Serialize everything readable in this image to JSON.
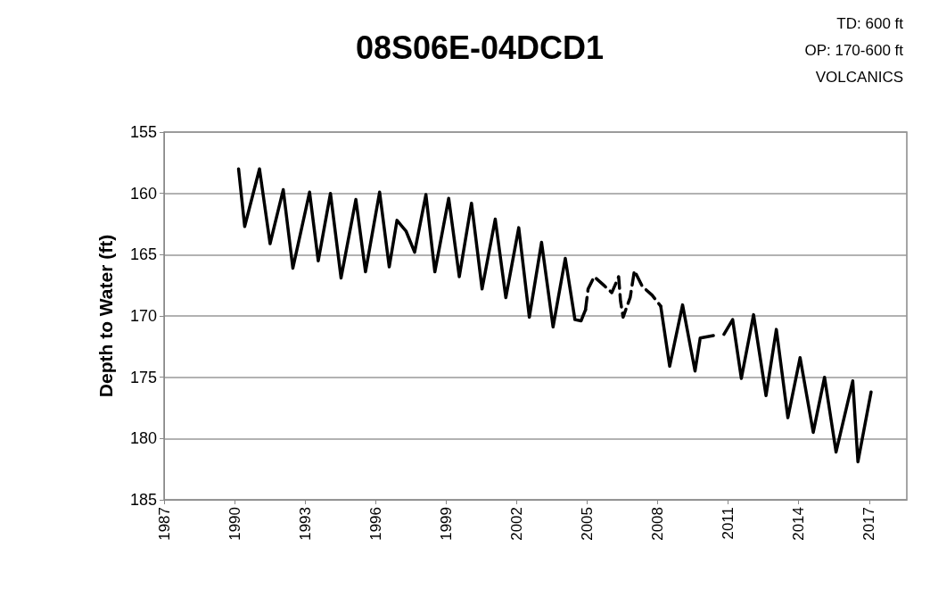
{
  "chart_data": {
    "type": "line",
    "title": "08S06E-04DCD1",
    "ylabel": "Depth to Water (ft)",
    "annotations": [
      "TD: 600 ft",
      "OP: 170-600 ft",
      "VOLCANICS"
    ],
    "xlim": [
      1987,
      2018.6
    ],
    "xticks": [
      1987,
      1990,
      1993,
      1996,
      1999,
      2002,
      2005,
      2008,
      2011,
      2014,
      2017
    ],
    "ylim": [
      185,
      155
    ],
    "yticks": [
      155,
      160,
      165,
      170,
      175,
      180,
      185
    ],
    "grid": "y",
    "series": [
      {
        "color": "#000000",
        "line_style": "solid",
        "x": [
          1990.17,
          1990.43,
          1991.06,
          1991.51,
          1992.07,
          1992.48,
          1993.19,
          1993.56,
          1994.08,
          1994.53,
          1995.16,
          1995.57,
          1996.17,
          1996.58,
          1996.91,
          1997.3,
          1997.66,
          1998.14,
          1998.52,
          1999.11,
          1999.56,
          2000.08,
          2000.53,
          2001.09,
          2001.54,
          2002.09,
          2002.54,
          2003.06,
          2003.55,
          2004.07,
          2004.48,
          2004.74,
          2004.93,
          2006.2,
          2008.13,
          2008.51,
          2009.06,
          2009.59,
          2009.81,
          2010.37,
          2010.6,
          2010.82,
          2011.19,
          2011.56,
          2012.08,
          2012.61,
          2013.05,
          2013.54,
          2014.06,
          2014.62,
          2015.1,
          2015.59,
          2016.3,
          2016.52,
          2017.08
        ],
        "values": [
          158.0,
          162.7,
          158.0,
          164.1,
          159.7,
          166.1,
          159.9,
          165.5,
          160.0,
          166.9,
          160.5,
          166.4,
          159.9,
          166.0,
          162.2,
          163.1,
          164.8,
          160.1,
          166.4,
          160.4,
          166.8,
          160.8,
          167.8,
          162.1,
          168.5,
          162.8,
          170.1,
          164.0,
          170.9,
          165.3,
          170.3,
          170.4,
          169.5,
          null,
          169.2,
          174.1,
          169.1,
          174.5,
          171.8,
          171.6,
          null,
          171.5,
          170.3,
          175.1,
          169.9,
          176.5,
          171.1,
          178.3,
          173.4,
          179.5,
          175.0,
          181.1,
          175.3,
          181.9,
          176.2
        ]
      },
      {
        "color": "#000000",
        "line_style": "dashed",
        "x": [
          2004.93,
          2005.04,
          2005.3,
          2005.71,
          2006.05,
          2006.34,
          2006.42,
          2006.53,
          2006.83,
          2007.01,
          2007.35,
          2007.76,
          2008.13
        ],
        "values": [
          169.5,
          167.8,
          166.8,
          167.5,
          168.1,
          166.8,
          168.8,
          170.1,
          168.5,
          166.3,
          167.6,
          168.3,
          169.2
        ]
      }
    ]
  }
}
